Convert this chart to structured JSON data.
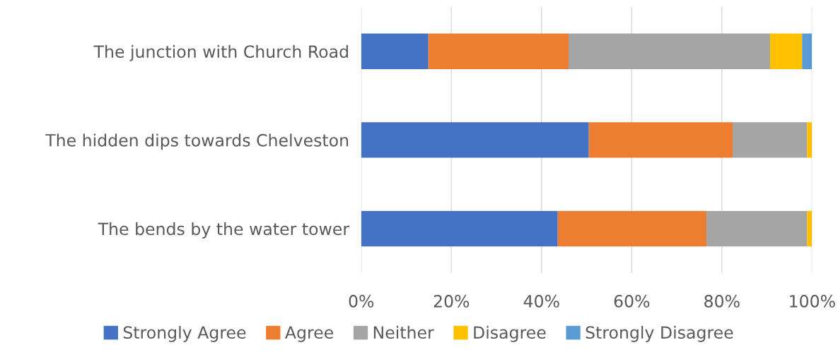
{
  "chart_data": {
    "type": "bar",
    "orientation": "horizontal",
    "stacked": true,
    "categories": [
      "The junction with Church Road",
      "The hidden dips towards Chelveston",
      "The bends by the water tower"
    ],
    "series": [
      {
        "name": "Strongly Agree",
        "color": "#4472c4",
        "values": [
          14.9,
          50.5,
          43.6
        ]
      },
      {
        "name": "Agree",
        "color": "#ed7d31",
        "values": [
          31.1,
          31.9,
          33.0
        ]
      },
      {
        "name": "Neither",
        "color": "#a5a5a5",
        "values": [
          44.7,
          16.5,
          22.3
        ]
      },
      {
        "name": "Disagree",
        "color": "#ffc000",
        "values": [
          7.1,
          1.1,
          1.1
        ]
      },
      {
        "name": "Strongly Disagree",
        "color": "#5b9bd5",
        "values": [
          2.2,
          null,
          null
        ]
      }
    ],
    "xlim": [
      0,
      100
    ],
    "xticks": [
      {
        "value": 0,
        "label": "0%"
      },
      {
        "value": 20,
        "label": "20%"
      },
      {
        "value": 40,
        "label": "40%"
      },
      {
        "value": 60,
        "label": "60%"
      },
      {
        "value": 80,
        "label": "80%"
      },
      {
        "value": 100,
        "label": "100%"
      }
    ],
    "grid": "x",
    "legend": "bottom"
  }
}
